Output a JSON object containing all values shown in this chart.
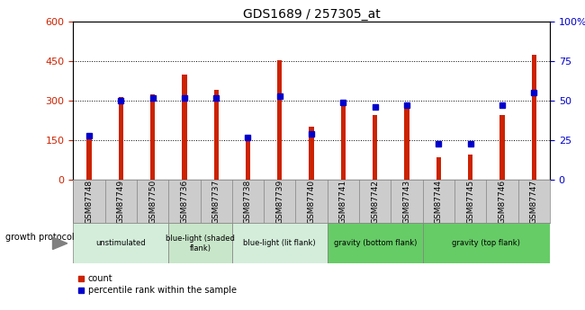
{
  "title": "GDS1689 / 257305_at",
  "samples": [
    "GSM87748",
    "GSM87749",
    "GSM87750",
    "GSM87736",
    "GSM87737",
    "GSM87738",
    "GSM87739",
    "GSM87740",
    "GSM87741",
    "GSM87742",
    "GSM87743",
    "GSM87744",
    "GSM87745",
    "GSM87746",
    "GSM87747"
  ],
  "counts": [
    170,
    315,
    325,
    400,
    340,
    150,
    455,
    200,
    305,
    245,
    270,
    85,
    95,
    245,
    475
  ],
  "percentiles": [
    28,
    50,
    52,
    52,
    52,
    27,
    53,
    29,
    49,
    46,
    47,
    23,
    23,
    47,
    55
  ],
  "groups": [
    {
      "label": "unstimulated",
      "start": 0,
      "end": 3,
      "color": "#d4edda"
    },
    {
      "label": "blue-light (shaded\nflank)",
      "start": 3,
      "end": 5,
      "color": "#c8e6c9"
    },
    {
      "label": "blue-light (lit flank)",
      "start": 5,
      "end": 8,
      "color": "#d4edda"
    },
    {
      "label": "gravity (bottom flank)",
      "start": 8,
      "end": 11,
      "color": "#66cc66"
    },
    {
      "label": "gravity (top flank)",
      "start": 11,
      "end": 15,
      "color": "#66cc66"
    }
  ],
  "bar_color": "#cc2200",
  "percentile_color": "#0000cc",
  "ylim_left": [
    0,
    600
  ],
  "ylim_right": [
    0,
    100
  ],
  "yticks_left": [
    0,
    150,
    300,
    450,
    600
  ],
  "yticks_right": [
    0,
    25,
    50,
    75,
    100
  ],
  "growth_protocol_label": "growth protocol",
  "legend_count": "count",
  "legend_percentile": "percentile rank within the sample",
  "bar_width": 0.15,
  "sample_box_color": "#cccccc",
  "plot_bg": "white"
}
